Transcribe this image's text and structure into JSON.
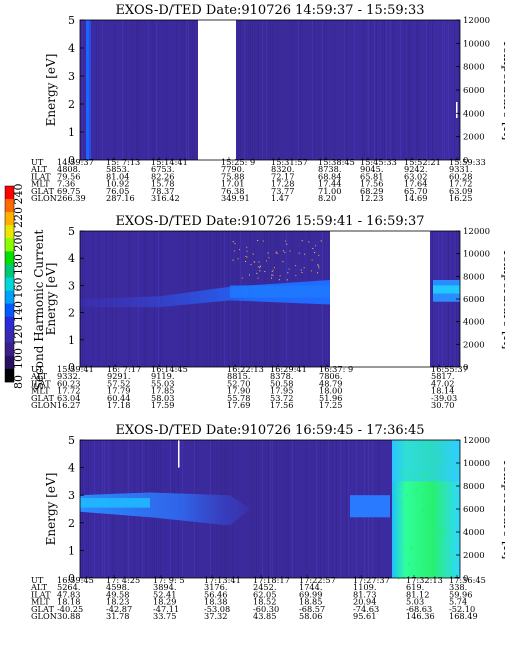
{
  "colorbar": {
    "label": "Second Harmonic Current",
    "ticks": [
      "240",
      "220",
      "200",
      "180",
      "160",
      "140",
      "120",
      "100",
      "80"
    ],
    "colors": [
      "#ff0000",
      "#ff6a00",
      "#ffb000",
      "#e8e800",
      "#88ff00",
      "#00e000",
      "#00c878",
      "#00d8d8",
      "#00a0ff",
      "#005aff",
      "#2a2ad8",
      "#3a2ab0",
      "#3a1f8a",
      "#2a1060",
      "#000000"
    ]
  },
  "chart_data": [
    {
      "type": "heatmap",
      "title": "EXOS-D/TED   Date:910726   14:59:37 - 15:59:33",
      "ylabel": "Energy [eV]",
      "y2label": "Temperature [K]",
      "ylim": [
        0,
        5
      ],
      "y2lim": [
        0,
        12000
      ],
      "yticks": [
        "0",
        "1",
        "2",
        "3",
        "4",
        "5"
      ],
      "y2ticks": [
        "0",
        "2000",
        "4000",
        "6000",
        "8000",
        "10000",
        "12000"
      ],
      "row_labels": [
        "UT",
        "ALT",
        "ILAT",
        "MLT",
        "GLAT",
        "GLON"
      ],
      "columns": [
        {
          "UT": "14:59:37",
          "ALT": "4808.",
          "ILAT": "79.56",
          "MLT": "7.36",
          "GLAT": "69.75",
          "GLON": "266.39"
        },
        {
          "UT": "15: 7:13",
          "ALT": "5853.",
          "ILAT": "81.04",
          "MLT": "10.92",
          "GLAT": "76.05",
          "GLON": "287.16"
        },
        {
          "UT": "15:14:41",
          "ALT": "6753.",
          "ILAT": "82.26",
          "MLT": "15.78",
          "GLAT": "78.37",
          "GLON": "316.42"
        },
        {
          "UT": "15:25: 9",
          "ALT": "7790.",
          "ILAT": "75.88",
          "MLT": "17.01",
          "GLAT": "76.38",
          "GLON": "349.91"
        },
        {
          "UT": "15:31:57",
          "ALT": "8320.",
          "ILAT": "72.17",
          "MLT": "17.28",
          "GLAT": "73.77",
          "GLON": "1.47"
        },
        {
          "UT": "15:38:45",
          "ALT": "8738.",
          "ILAT": "68.84",
          "MLT": "17.44",
          "GLAT": "71.00",
          "GLON": "8.20"
        },
        {
          "UT": "15:45:33",
          "ALT": "9045.",
          "ILAT": "65.81",
          "MLT": "17.56",
          "GLAT": "68.29",
          "GLON": "12.23"
        },
        {
          "UT": "15:52:21",
          "ALT": "9242.",
          "ILAT": "63.02",
          "MLT": "17.64",
          "GLAT": "65.70",
          "GLON": "14.69"
        },
        {
          "UT": "15:59:33",
          "ALT": "9331.",
          "ILAT": "60.28",
          "MLT": "17.72",
          "GLAT": "63.09",
          "GLON": "16.25"
        }
      ]
    },
    {
      "type": "heatmap",
      "title": "EXOS-D/TED   Date:910726   15:59:41 - 16:59:37",
      "ylabel": "Energy [eV]",
      "y2label": "Temperature [K]",
      "ylim": [
        0,
        5
      ],
      "y2lim": [
        0,
        12000
      ],
      "yticks": [
        "0",
        "1",
        "2",
        "3",
        "4",
        "5"
      ],
      "y2ticks": [
        "0",
        "2000",
        "4000",
        "6000",
        "8000",
        "10000",
        "12000"
      ],
      "row_labels": [
        "UT",
        "ALT",
        "ILAT",
        "MLT",
        "GLAT",
        "GLON"
      ],
      "columns": [
        {
          "UT": "15:59:41",
          "ALT": "9332.",
          "ILAT": "60.23",
          "MLT": "17.72",
          "GLAT": "63.04",
          "GLON": "16.27"
        },
        {
          "UT": "16: 7:17",
          "ALT": "9291.",
          "ILAT": "57.52",
          "MLT": "17.79",
          "GLAT": "60.44",
          "GLON": "17.18"
        },
        {
          "UT": "16:14:45",
          "ALT": "9119.",
          "ILAT": "55.03",
          "MLT": "17.85",
          "GLAT": "58.03",
          "GLON": "17.59"
        },
        {
          "UT": "16:22:13",
          "ALT": "8815.",
          "ILAT": "52.70",
          "MLT": "17.90",
          "GLAT": "55.78",
          "GLON": "17.69"
        },
        {
          "UT": "16:29:41",
          "ALT": "8378.",
          "ILAT": "50.58",
          "MLT": "17.95",
          "GLAT": "53.72",
          "GLON": "17.56"
        },
        {
          "UT": "16:37: 9",
          "ALT": "7806.",
          "ILAT": "48.79",
          "MLT": "18.00",
          "GLAT": "51.96",
          "GLON": "17.25"
        },
        {
          "UT": "16:55:37",
          "ALT": "5817.",
          "ILAT": "47.02",
          "MLT": "18.14",
          "GLAT": "-39.03",
          "GLON": "30.70"
        }
      ]
    },
    {
      "type": "heatmap",
      "title": "EXOS-D/TED   Date:910726   16:59:45 - 17:36:45",
      "ylabel": "Energy [eV]",
      "y2label": "Temperature [K]",
      "ylim": [
        0,
        5
      ],
      "y2lim": [
        0,
        12000
      ],
      "yticks": [
        "0",
        "1",
        "2",
        "3",
        "4",
        "5"
      ],
      "y2ticks": [
        "0",
        "2000",
        "4000",
        "6000",
        "8000",
        "10000",
        "12000"
      ],
      "row_labels": [
        "UT",
        "ALT",
        "ILAT",
        "MLT",
        "GLAT",
        "GLON"
      ],
      "columns": [
        {
          "UT": "16:59:45",
          "ALT": "5264.",
          "ILAT": "47.83",
          "MLT": "18.18",
          "GLAT": "-40.25",
          "GLON": "30.88"
        },
        {
          "UT": "17: 4:25",
          "ALT": "4598.",
          "ILAT": "49.58",
          "MLT": "18.23",
          "GLAT": "-42.87",
          "GLON": "31.78"
        },
        {
          "UT": "17: 9: 5",
          "ALT": "3894.",
          "ILAT": "52.41",
          "MLT": "18.29",
          "GLAT": "-47.11",
          "GLON": "33.75"
        },
        {
          "UT": "17:13:41",
          "ALT": "3176.",
          "ILAT": "56.46",
          "MLT": "18.38",
          "GLAT": "-53.08",
          "GLON": "37.32"
        },
        {
          "UT": "17:18:17",
          "ALT": "2452.",
          "ILAT": "62.05",
          "MLT": "18.52",
          "GLAT": "-60.30",
          "GLON": "43.85"
        },
        {
          "UT": "17:22:57",
          "ALT": "1744.",
          "ILAT": "69.99",
          "MLT": "18.85",
          "GLAT": "-68.57",
          "GLON": "58.06"
        },
        {
          "UT": "17:27:37",
          "ALT": "1109.",
          "ILAT": "81.73",
          "MLT": "20.94",
          "GLAT": "-74.63",
          "GLON": "95.61"
        },
        {
          "UT": "17:32:13",
          "ALT": "619.",
          "ILAT": "81.12",
          "MLT": "5.03",
          "GLAT": "-68.63",
          "GLON": "146.36"
        },
        {
          "UT": "17:36:45",
          "ALT": "338.",
          "ILAT": "59.96",
          "MLT": "5.74",
          "GLAT": "-52.10",
          "GLON": "168.49"
        }
      ]
    }
  ]
}
